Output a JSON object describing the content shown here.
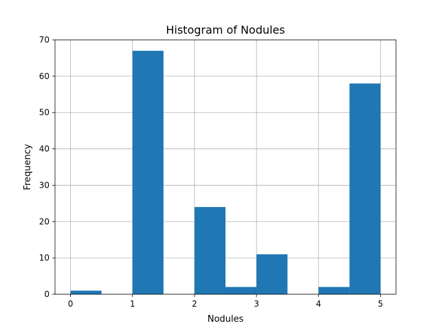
{
  "chart_data": {
    "type": "bar",
    "title": "Histogram of Nodules",
    "xlabel": "Nodules",
    "ylabel": "Frequency",
    "bins": [
      {
        "start": 0.0,
        "end": 0.5,
        "count": 1
      },
      {
        "start": 0.5,
        "end": 1.0,
        "count": 0
      },
      {
        "start": 1.0,
        "end": 1.5,
        "count": 67
      },
      {
        "start": 1.5,
        "end": 2.0,
        "count": 0
      },
      {
        "start": 2.0,
        "end": 2.5,
        "count": 24
      },
      {
        "start": 2.5,
        "end": 3.0,
        "count": 2
      },
      {
        "start": 3.0,
        "end": 3.5,
        "count": 11
      },
      {
        "start": 3.5,
        "end": 4.0,
        "count": 0
      },
      {
        "start": 4.0,
        "end": 4.5,
        "count": 2
      },
      {
        "start": 4.5,
        "end": 5.0,
        "count": 58
      }
    ],
    "xlim": [
      -0.25,
      5.25
    ],
    "ylim": [
      0,
      70
    ],
    "xticks": [
      0,
      1,
      2,
      3,
      4,
      5
    ],
    "yticks": [
      0,
      10,
      20,
      30,
      40,
      50,
      60,
      70
    ],
    "grid": true,
    "bar_color": "#1f77b4",
    "grid_color": "#b0b0b0"
  }
}
